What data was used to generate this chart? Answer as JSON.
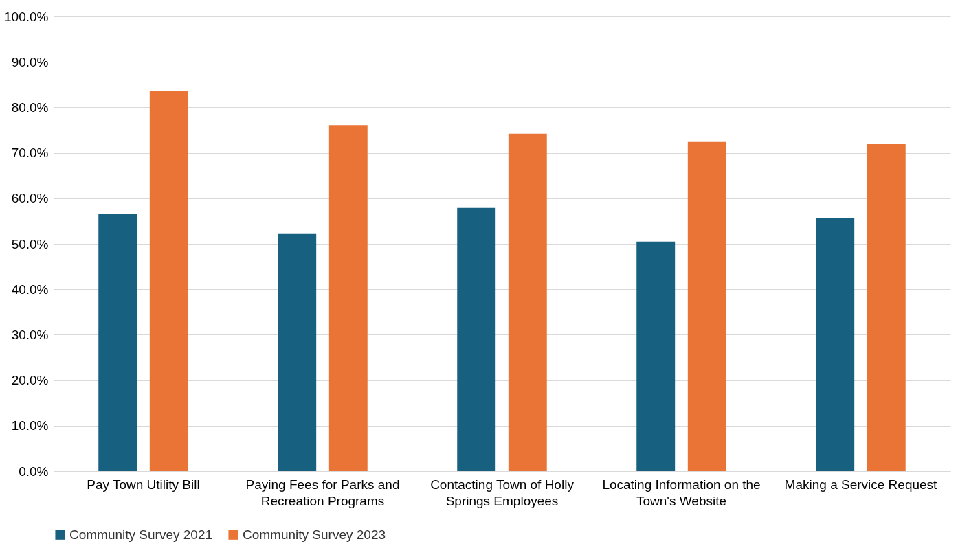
{
  "chart_data": {
    "type": "bar",
    "categories": [
      "Pay Town Utility Bill",
      "Paying Fees for Parks and Recreation Programs",
      "Contacting Town of Holly Springs Employees",
      "Locating Information on the Town's Website",
      "Making a Service Request"
    ],
    "series": [
      {
        "name": "Community Survey 2021",
        "color": "#17607f",
        "values": [
          56.5,
          52.3,
          57.9,
          50.5,
          55.6
        ]
      },
      {
        "name": "Community Survey 2023",
        "color": "#e97436",
        "values": [
          83.7,
          76.1,
          74.2,
          72.4,
          71.9
        ]
      }
    ],
    "ylim": [
      0,
      100
    ],
    "yticks": [
      {
        "value": 0,
        "label": "0.0%"
      },
      {
        "value": 10,
        "label": "10.0%"
      },
      {
        "value": 20,
        "label": "20.0%"
      },
      {
        "value": 30,
        "label": "30.0%"
      },
      {
        "value": 40,
        "label": "40.0%"
      },
      {
        "value": 50,
        "label": "50.0%"
      },
      {
        "value": 60,
        "label": "60.0%"
      },
      {
        "value": 70,
        "label": "70.0%"
      },
      {
        "value": 80,
        "label": "80.0%"
      },
      {
        "value": 90,
        "label": "90.0%"
      },
      {
        "value": 100,
        "label": "100.0%"
      }
    ],
    "grid": "y",
    "legend": "bottom"
  }
}
